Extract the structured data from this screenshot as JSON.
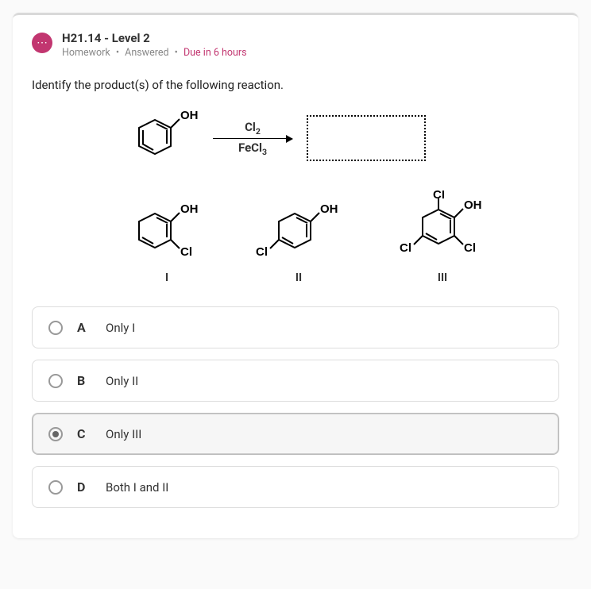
{
  "header": {
    "title": "H21.14 - Level 2",
    "meta": {
      "type": "Homework",
      "status": "Answered",
      "due": "Due in 6 hours"
    }
  },
  "prompt": "Identify the product(s) of the following reaction.",
  "reaction": {
    "reagent_top_html": "Cl<sub>2</sub>",
    "reagent_bot_html": "FeCl<sub>3</sub>"
  },
  "products": {
    "labels": [
      "I",
      "II",
      "III"
    ]
  },
  "options": [
    {
      "letter": "A",
      "text": "Only I",
      "selected": false
    },
    {
      "letter": "B",
      "text": "Only II",
      "selected": false
    },
    {
      "letter": "C",
      "text": "Only III",
      "selected": true
    },
    {
      "letter": "D",
      "text": "Both I and II",
      "selected": false
    }
  ],
  "style": {
    "accent": "#c23670",
    "border": "#ddd",
    "selected_bg": "#f6f6f6"
  }
}
